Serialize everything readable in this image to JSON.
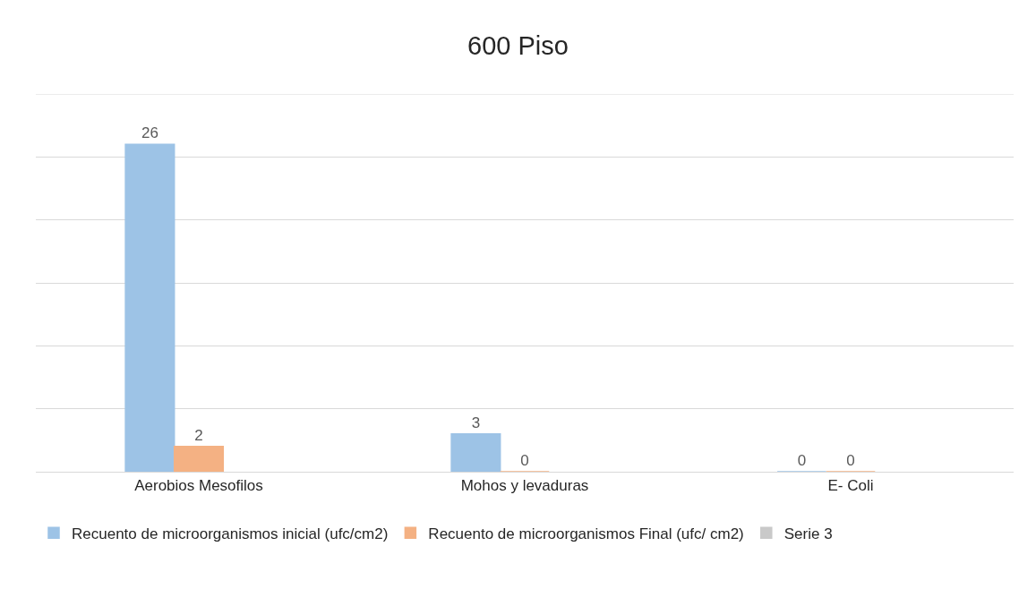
{
  "chart_data": {
    "type": "bar",
    "title": "600 Piso",
    "categories": [
      "Aerobios Mesofilos",
      "Mohos y levaduras",
      "E- Coli"
    ],
    "series": [
      {
        "name": "Recuento de microorganismos inicial (ufc/cm2)",
        "color": "#9dc3e6",
        "values": [
          26,
          3,
          0
        ]
      },
      {
        "name": "Recuento de microorganismos Final (ufc/ cm2)",
        "color": "#f4b183",
        "values": [
          2,
          0,
          0
        ]
      },
      {
        "name": "Serie 3",
        "color": "#c9c9c9",
        "values": [
          null,
          null,
          null
        ]
      }
    ],
    "ylim": [
      0,
      30
    ],
    "tick_labels": "x",
    "grid": "y",
    "legend": "bottom",
    "data_labels": true
  }
}
